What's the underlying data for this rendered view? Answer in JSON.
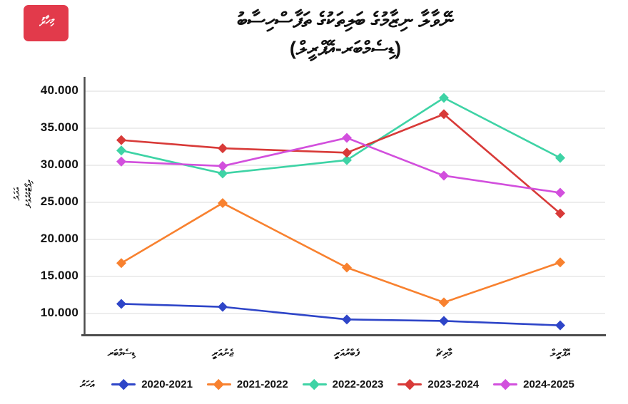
{
  "logo": {
    "text": "މިހާރު",
    "bg_color": "#e23a4b",
    "text_color": "#ffffff"
  },
  "chart_data": {
    "type": "line",
    "title": "ނޭވާލާ ނިޒާމުގެ ބަލިތަކުގެ ތަފާސްހިސާބު",
    "subtitle": "(ޑިސެމްބަރ-އޭޕްރީލް)",
    "ylabel": "ރިޕޯޓްކުރެވުނު އަދަދު",
    "ylabel_lines": [
      "ރިޕޯޓްކުރެވުނު",
      "އަދަދު"
    ],
    "xlabel": "",
    "categories": [
      "ޑިސެމްބަރ",
      "ޖެނުއަރީ",
      "ފެބްރުއަރީ",
      "މާރިޗް",
      "އޭޕްރީލް"
    ],
    "categories_en": [
      "December",
      "January",
      "February",
      "March",
      "April"
    ],
    "ytick_values": [
      40000,
      35000,
      30000,
      25000,
      20000,
      15000,
      10000
    ],
    "ytick_labels": [
      "40.000",
      "35.000",
      "30.000",
      "25.000",
      "20.000",
      "15.000",
      "10.000"
    ],
    "ylim": [
      7000,
      42000
    ],
    "grid": true,
    "grid_color": "#ededed",
    "axis_color": "#4d4d4d",
    "legend_position": "bottom",
    "legend_title": "އަހަރު",
    "series": [
      {
        "name": "2020-2021",
        "color": "#2e45c8",
        "values": [
          11300,
          10900,
          9200,
          9000,
          8400
        ]
      },
      {
        "name": "2021-2022",
        "color": "#f8812f",
        "values": [
          16800,
          24900,
          16200,
          11500,
          16900
        ]
      },
      {
        "name": "2022-2023",
        "color": "#3ed3a5",
        "values": [
          32000,
          28900,
          30700,
          39100,
          31000
        ]
      },
      {
        "name": "2023-2024",
        "color": "#d83a38",
        "values": [
          33400,
          32300,
          31700,
          36900,
          23500
        ]
      },
      {
        "name": "2024-2025",
        "color": "#d24fdd",
        "values": [
          30500,
          29900,
          33700,
          28600,
          26300
        ]
      }
    ]
  }
}
